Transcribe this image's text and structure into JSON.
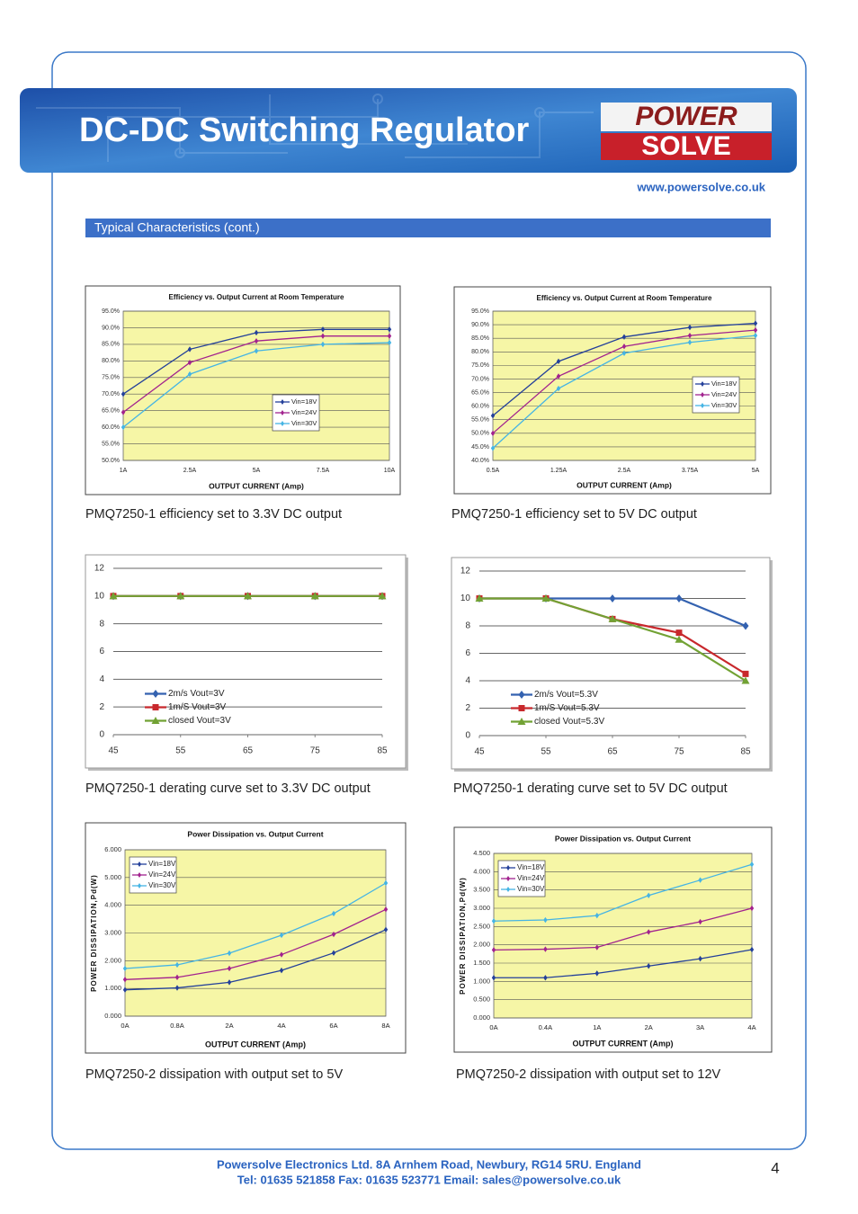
{
  "header": {
    "title": "DC-DC Switching Regulator",
    "logo_top": "POWER",
    "logo_bottom": "SOLVE"
  },
  "website": "www.powersolve.co.uk",
  "section_title": "Typical Characteristics (cont.)",
  "chart_data": [
    {
      "type": "line",
      "title": "Efficiency vs. Output Current at Room Temperature",
      "x_label": "OUTPUT CURRENT (Amp)",
      "categories": [
        "1A",
        "2.5A",
        "5A",
        "7.5A",
        "10A"
      ],
      "ylim": [
        50,
        95
      ],
      "yticks": [
        {
          "value": 50,
          "label": "50.0%"
        },
        {
          "value": 55,
          "label": "55.0%"
        },
        {
          "value": 60,
          "label": "60.0%"
        },
        {
          "value": 65,
          "label": "65.0%"
        },
        {
          "value": 70,
          "label": "70.0%"
        },
        {
          "value": 75,
          "label": "75.0%"
        },
        {
          "value": 80,
          "label": "80.0%"
        },
        {
          "value": 85,
          "label": "85.0%"
        },
        {
          "value": 90,
          "label": "90.0%"
        },
        {
          "value": 95,
          "label": "95.0%"
        }
      ],
      "grid": true,
      "plot_background": "#f6f6a6",
      "legend": "center right",
      "series": [
        {
          "name": "Vin=18V",
          "color": "#24409a",
          "marker": "diamond",
          "values": [
            70,
            83.5,
            88.5,
            89.5,
            89.5
          ]
        },
        {
          "name": "Vin=24V",
          "color": "#a2228e",
          "marker": "diamond",
          "values": [
            64.5,
            79.5,
            86,
            87.5,
            87.5
          ]
        },
        {
          "name": "Vin=30V",
          "color": "#45b4e4",
          "marker": "diamond",
          "values": [
            60,
            76,
            83,
            85,
            85.5
          ]
        }
      ]
    },
    {
      "type": "line",
      "title": "Efficiency vs. Output Current at Room Temperature",
      "x_label": "OUTPUT CURRENT (Amp)",
      "categories": [
        "0.5A",
        "1.25A",
        "2.5A",
        "3.75A",
        "5A"
      ],
      "ylim": [
        40,
        95
      ],
      "yticks": [
        {
          "value": 40,
          "label": "40.0%"
        },
        {
          "value": 45,
          "label": "45.0%"
        },
        {
          "value": 50,
          "label": "50.0%"
        },
        {
          "value": 55,
          "label": "55.0%"
        },
        {
          "value": 60,
          "label": "60.0%"
        },
        {
          "value": 65,
          "label": "65.0%"
        },
        {
          "value": 70,
          "label": "70.0%"
        },
        {
          "value": 75,
          "label": "75.0%"
        },
        {
          "value": 80,
          "label": "80.0%"
        },
        {
          "value": 85,
          "label": "85.0%"
        },
        {
          "value": 90,
          "label": "90.0%"
        },
        {
          "value": 95,
          "label": "95.0%"
        }
      ],
      "grid": true,
      "plot_background": "#f6f6a6",
      "legend": "center right",
      "series": [
        {
          "name": "Vin=18V",
          "color": "#24409a",
          "marker": "diamond",
          "values": [
            56.5,
            76.5,
            85.5,
            89,
            90.5
          ]
        },
        {
          "name": "Vin=24V",
          "color": "#a2228e",
          "marker": "diamond",
          "values": [
            50,
            71,
            82,
            86,
            88
          ]
        },
        {
          "name": "Vin=30V",
          "color": "#45b4e4",
          "marker": "diamond",
          "values": [
            44.5,
            66.5,
            79.5,
            83.5,
            86
          ]
        }
      ]
    },
    {
      "type": "line",
      "x": [
        45,
        55,
        65,
        75,
        85
      ],
      "xlim": [
        45,
        85
      ],
      "xticks": [
        45,
        55,
        65,
        75,
        85
      ],
      "ylim": [
        0,
        12
      ],
      "yticks": [
        0,
        2,
        4,
        6,
        8,
        10,
        12
      ],
      "grid": true,
      "legend": "lower left",
      "series": [
        {
          "name": "2m/s Vout=3V",
          "color": "#3462b0",
          "marker": "diamond",
          "values": [
            10,
            10,
            10,
            10,
            10
          ]
        },
        {
          "name": "1m/S Vout=3V",
          "color": "#c8282c",
          "marker": "square",
          "values": [
            10,
            10,
            10,
            10,
            10
          ]
        },
        {
          "name": "closed Vout=3V",
          "color": "#72a234",
          "marker": "triangle",
          "values": [
            10,
            10,
            10,
            10,
            10
          ]
        }
      ]
    },
    {
      "type": "line",
      "x": [
        45,
        55,
        65,
        75,
        85
      ],
      "xlim": [
        45,
        85
      ],
      "xticks": [
        45,
        55,
        65,
        75,
        85
      ],
      "ylim": [
        0,
        12
      ],
      "yticks": [
        0,
        2,
        4,
        6,
        8,
        10,
        12
      ],
      "grid": true,
      "legend": "lower left",
      "series": [
        {
          "name": "2m/s Vout=5.3V",
          "color": "#3462b0",
          "marker": "diamond",
          "values": [
            10,
            10,
            10,
            10,
            8
          ]
        },
        {
          "name": "1m/S Vout=5.3V",
          "color": "#c8282c",
          "marker": "square",
          "values": [
            10,
            10,
            8.5,
            7.5,
            4.5
          ]
        },
        {
          "name": "closed Vout=5.3V",
          "color": "#72a234",
          "marker": "triangle",
          "values": [
            10,
            10,
            8.5,
            7,
            4
          ]
        }
      ]
    },
    {
      "type": "line",
      "title": "Power Dissipation vs. Output Current",
      "x_label": "OUTPUT CURRENT (Amp)",
      "y_label": "POWER DISSIPATION,Pd(W)",
      "categories": [
        "0A",
        "0.8A",
        "2A",
        "4A",
        "6A",
        "8A"
      ],
      "ylim": [
        0,
        6
      ],
      "yticks": [
        {
          "value": 0,
          "label": "0.000"
        },
        {
          "value": 1,
          "label": "1.000"
        },
        {
          "value": 2,
          "label": "2.000"
        },
        {
          "value": 3,
          "label": "3.000"
        },
        {
          "value": 4,
          "label": "4.000"
        },
        {
          "value": 5,
          "label": "5.000"
        },
        {
          "value": 6,
          "label": "6.000"
        }
      ],
      "grid": true,
      "plot_background": "#f6f6a6",
      "legend": "upper left",
      "series": [
        {
          "name": "Vin=18V",
          "color": "#24409a",
          "marker": "diamond",
          "values": [
            0.95,
            1.02,
            1.22,
            1.65,
            2.28,
            3.12
          ]
        },
        {
          "name": "Vin=24V",
          "color": "#a2228e",
          "marker": "diamond",
          "values": [
            1.32,
            1.4,
            1.72,
            2.22,
            2.95,
            3.85
          ]
        },
        {
          "name": "Vin=30V",
          "color": "#45b4e4",
          "marker": "diamond",
          "values": [
            1.72,
            1.85,
            2.27,
            2.92,
            3.7,
            4.8
          ]
        }
      ]
    },
    {
      "type": "line",
      "title": "Power Dissipation vs. Output Current",
      "x_label": "OUTPUT CURRENT (Amp)",
      "y_label": "POWER DISSIPATION,Pd(W)",
      "categories": [
        "0A",
        "0.4A",
        "1A",
        "2A",
        "3A",
        "4A"
      ],
      "ylim": [
        0,
        4.5
      ],
      "yticks": [
        {
          "value": 0,
          "label": "0.000"
        },
        {
          "value": 0.5,
          "label": "0.500"
        },
        {
          "value": 1,
          "label": "1.000"
        },
        {
          "value": 1.5,
          "label": "1.500"
        },
        {
          "value": 2,
          "label": "2.000"
        },
        {
          "value": 2.5,
          "label": "2.500"
        },
        {
          "value": 3,
          "label": "3.000"
        },
        {
          "value": 3.5,
          "label": "3.500"
        },
        {
          "value": 4,
          "label": "4.000"
        },
        {
          "value": 4.5,
          "label": "4.500"
        }
      ],
      "grid": true,
      "plot_background": "#f6f6a6",
      "legend": "upper left",
      "series": [
        {
          "name": "Vin=18V",
          "color": "#24409a",
          "marker": "diamond",
          "values": [
            1.1,
            1.1,
            1.22,
            1.42,
            1.62,
            1.87
          ]
        },
        {
          "name": "Vin=24V",
          "color": "#a2228e",
          "marker": "diamond",
          "values": [
            1.86,
            1.88,
            1.93,
            2.35,
            2.63,
            3.0
          ]
        },
        {
          "name": "Vin=30V",
          "color": "#45b4e4",
          "marker": "diamond",
          "values": [
            2.65,
            2.68,
            2.8,
            3.35,
            3.77,
            4.2
          ]
        }
      ]
    }
  ],
  "captions": [
    "PMQ7250-1 efficiency set to 3.3V DC output",
    "PMQ7250-1 efficiency set to 5V DC output",
    "PMQ7250-1 derating curve set to 3.3V DC output",
    "PMQ7250-1 derating curve set to 5V DC output",
    "PMQ7250-2 dissipation with output set to 5V",
    "PMQ7250-2 dissipation with output set to 12V"
  ],
  "footer": {
    "line1": "Powersolve Electronics Ltd.  8A Arnhem Road,  Newbury, RG14 5RU.  England",
    "line2": "Tel: 01635 521858  Fax: 01635 523771  Email: sales@powersolve.co.uk"
  },
  "page_number": 4
}
